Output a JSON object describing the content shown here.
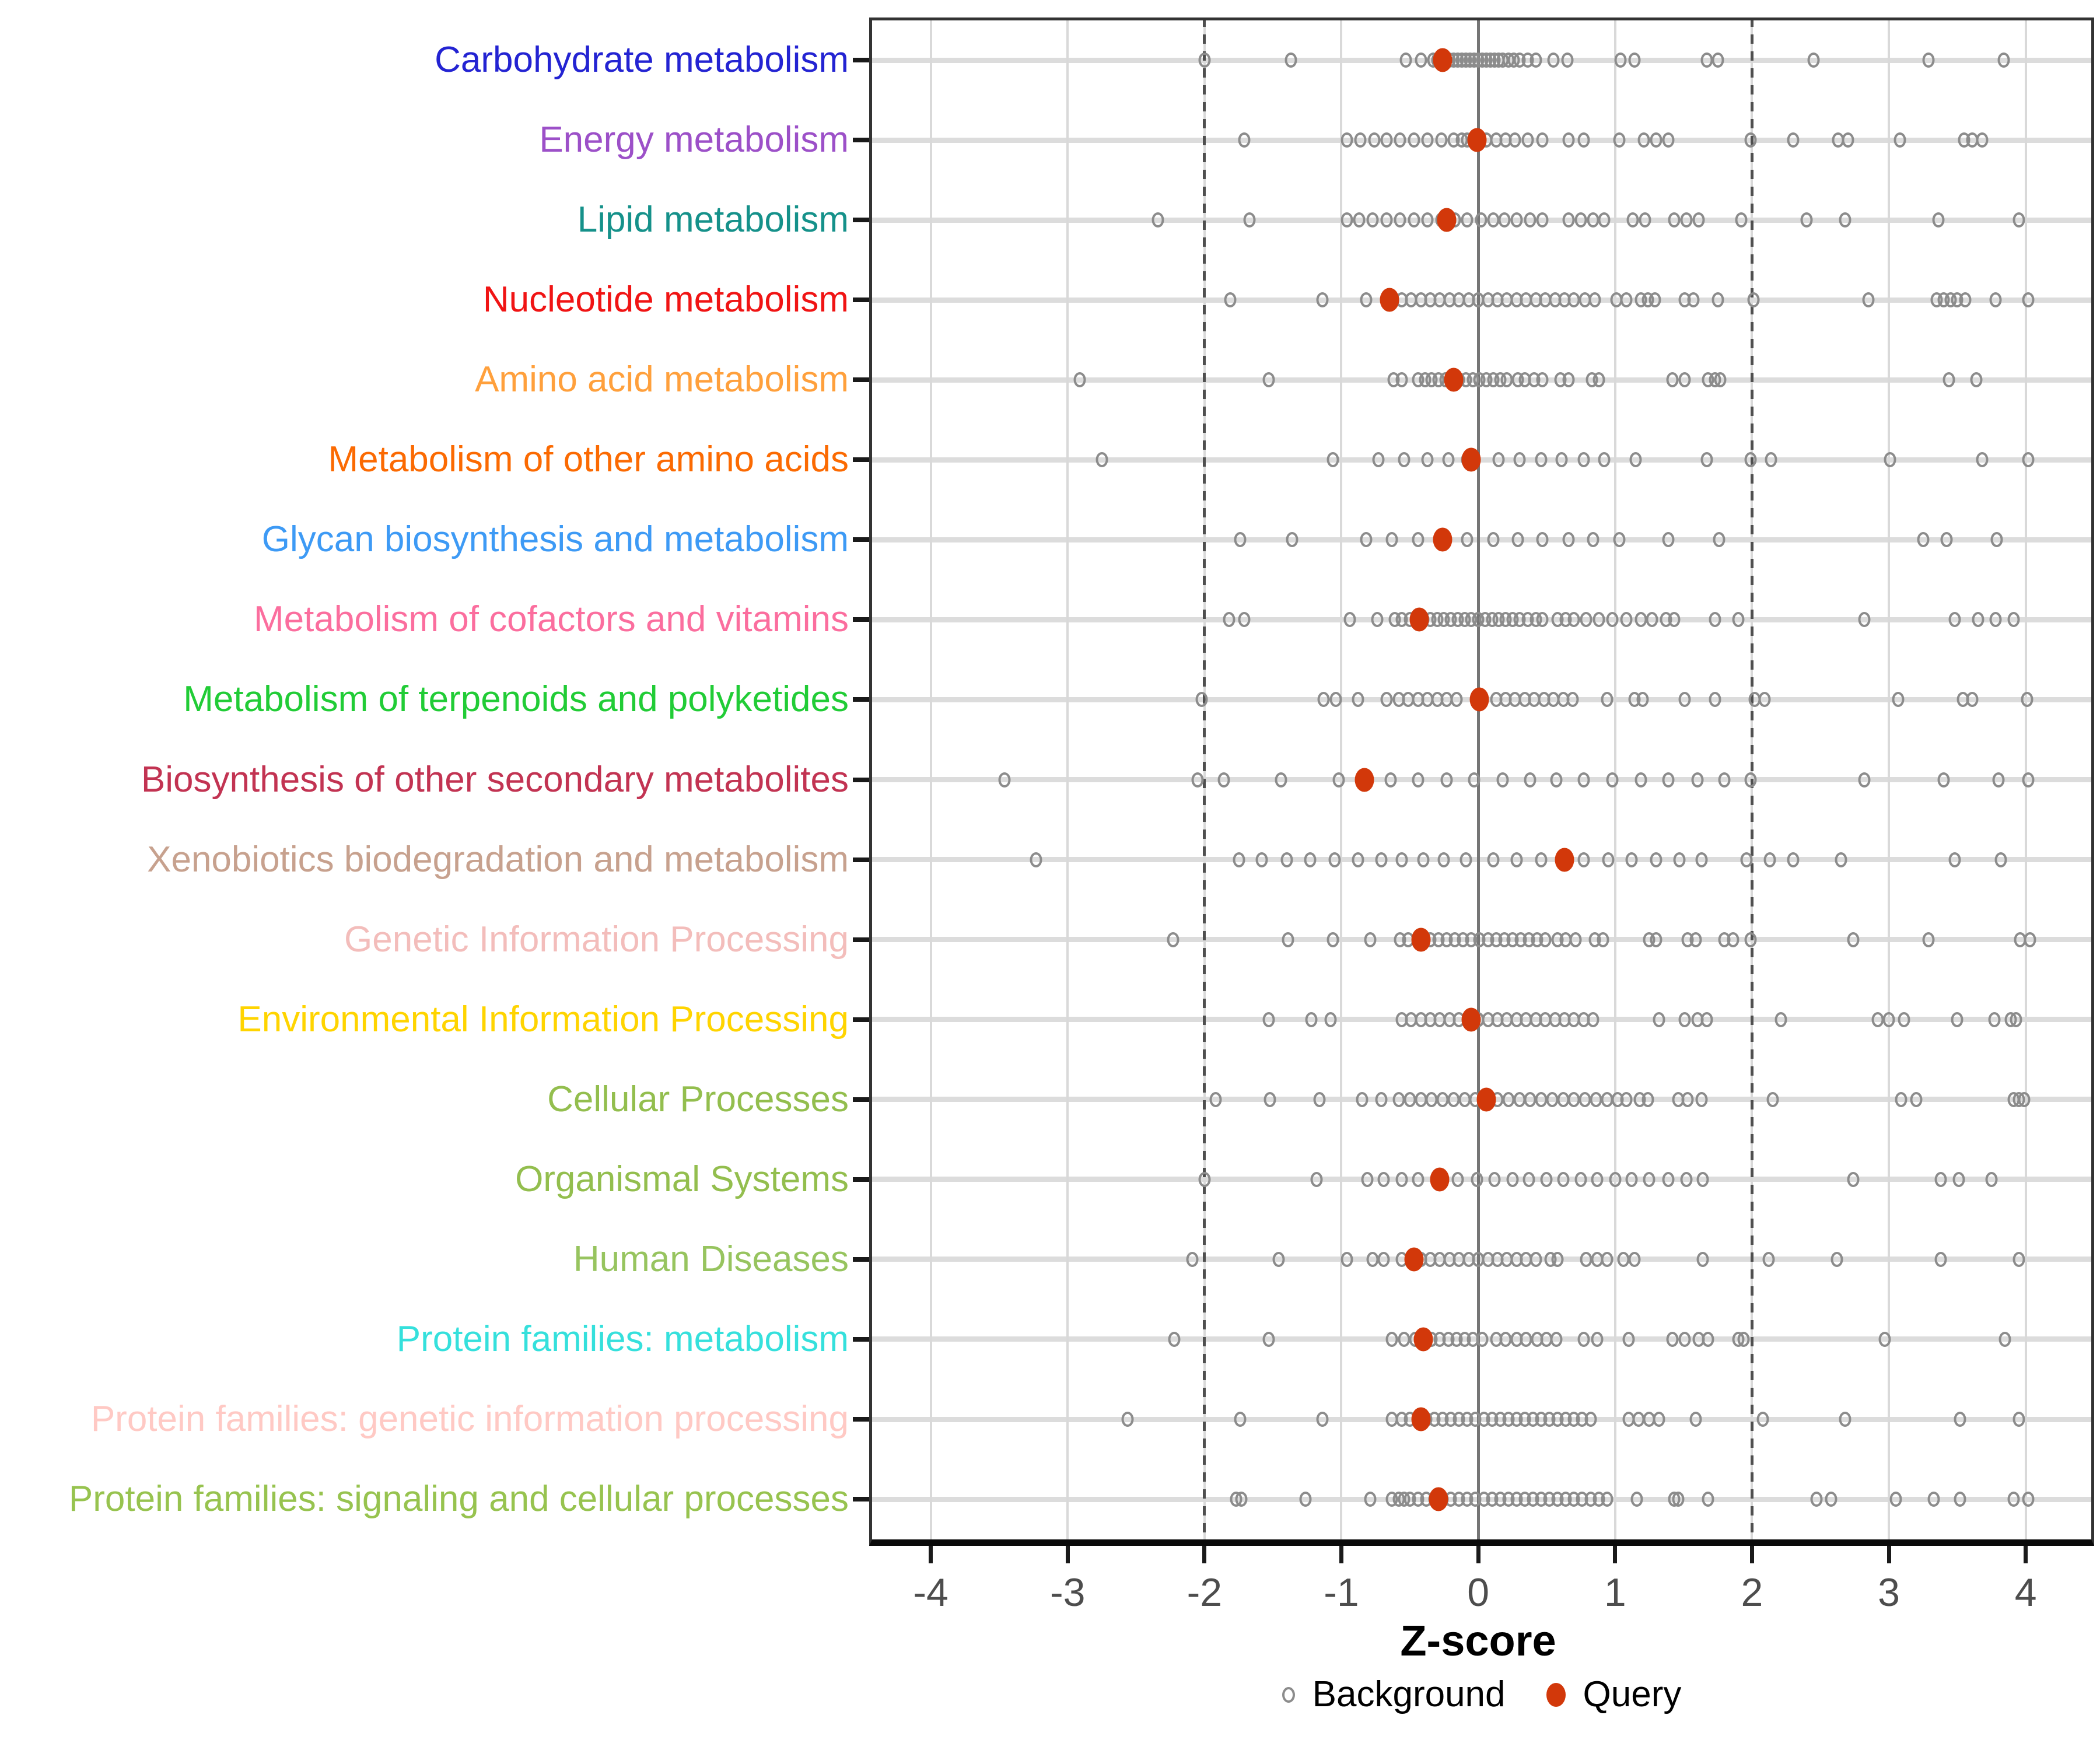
{
  "chart_data": {
    "type": "scatter",
    "title": "",
    "xlabel": "Z-score",
    "xlim": [
      -4.45,
      4.5
    ],
    "x_ticks": [
      -4,
      -3,
      -2,
      -1,
      0,
      1,
      2,
      3,
      4
    ],
    "grid": "major-vertical-and-row-lines",
    "reference_lines": {
      "zero_solid": 0,
      "dashed_thresholds": [
        -2,
        2
      ]
    },
    "legend_position": "bottom-center",
    "legend": [
      {
        "label": "Background",
        "marker": "open-circle",
        "color": "#8C8C8C"
      },
      {
        "label": "Query",
        "marker": "filled-circle",
        "color": "#D2380A"
      }
    ],
    "series_note": "Each category row: gray open circles = Background z-scores, red filled circle = Query z-score",
    "categories": [
      {
        "label": "Carbohydrate metabolism",
        "color": "#2323D2",
        "query": -0.26,
        "background": [
          -2.0,
          -1.37,
          -0.53,
          -0.42,
          -0.33,
          -0.3,
          -0.27,
          -0.24,
          -0.21,
          -0.18,
          -0.15,
          -0.12,
          -0.09,
          -0.06,
          -0.03,
          0.0,
          0.03,
          0.06,
          0.09,
          0.12,
          0.15,
          0.18,
          0.22,
          0.26,
          0.3,
          0.36,
          0.42,
          0.55,
          0.65,
          1.04,
          1.14,
          1.67,
          1.75,
          2.45,
          3.29,
          3.84
        ]
      },
      {
        "label": "Energy metabolism",
        "color": "#9C50C8",
        "query": -0.01,
        "background": [
          -1.71,
          -0.96,
          -0.86,
          -0.76,
          -0.67,
          -0.57,
          -0.47,
          -0.37,
          -0.27,
          -0.18,
          -0.12,
          -0.08,
          -0.04,
          0.0,
          0.06,
          0.13,
          0.2,
          0.27,
          0.36,
          0.47,
          0.66,
          0.77,
          1.03,
          1.21,
          1.3,
          1.39,
          1.99,
          2.3,
          2.63,
          2.7,
          3.08,
          3.55,
          3.61,
          3.68
        ]
      },
      {
        "label": "Lipid metabolism",
        "color": "#15918A",
        "query": -0.23,
        "background": [
          -2.34,
          -1.67,
          -0.96,
          -0.87,
          -0.77,
          -0.67,
          -0.57,
          -0.47,
          -0.37,
          -0.27,
          -0.17,
          -0.08,
          0.02,
          0.11,
          0.19,
          0.28,
          0.38,
          0.47,
          0.66,
          0.75,
          0.84,
          0.92,
          1.13,
          1.22,
          1.43,
          1.52,
          1.61,
          1.92,
          2.4,
          2.68,
          3.36,
          3.95
        ]
      },
      {
        "label": "Nucleotide metabolism",
        "color": "#F01414",
        "query": -0.65,
        "background": [
          -1.81,
          -1.14,
          -0.82,
          -0.56,
          -0.49,
          -0.42,
          -0.35,
          -0.28,
          -0.21,
          -0.14,
          -0.07,
          0.0,
          0.07,
          0.14,
          0.21,
          0.28,
          0.35,
          0.42,
          0.49,
          0.56,
          0.63,
          0.7,
          0.78,
          0.85,
          1.01,
          1.08,
          1.19,
          1.24,
          1.29,
          1.51,
          1.57,
          1.75,
          2.01,
          2.85,
          3.35,
          3.4,
          3.45,
          3.5,
          3.56,
          3.78,
          4.02
        ]
      },
      {
        "label": "Amino acid metabolism",
        "color": "#FFA03C",
        "query": -0.18,
        "background": [
          -2.91,
          -1.53,
          -0.62,
          -0.56,
          -0.44,
          -0.39,
          -0.34,
          -0.29,
          -0.24,
          -0.19,
          -0.14,
          -0.09,
          -0.04,
          0.01,
          0.06,
          0.11,
          0.16,
          0.21,
          0.29,
          0.34,
          0.41,
          0.47,
          0.6,
          0.66,
          0.83,
          0.88,
          1.42,
          1.51,
          1.68,
          1.73,
          1.77,
          3.44,
          3.64
        ]
      },
      {
        "label": "Metabolism of other amino acids",
        "color": "#FB6A02",
        "query": -0.05,
        "background": [
          -2.75,
          -1.06,
          -0.73,
          -0.54,
          -0.37,
          -0.22,
          -0.08,
          0.15,
          0.3,
          0.46,
          0.61,
          0.77,
          0.92,
          1.15,
          1.67,
          1.99,
          2.14,
          3.01,
          3.68,
          4.02
        ]
      },
      {
        "label": "Glycan biosynthesis and metabolism",
        "color": "#3D9AF5",
        "query": -0.26,
        "background": [
          -1.74,
          -1.36,
          -0.82,
          -0.63,
          -0.44,
          -0.08,
          0.11,
          0.29,
          0.47,
          0.66,
          0.84,
          1.03,
          1.39,
          1.76,
          3.25,
          3.42,
          3.79
        ]
      },
      {
        "label": "Metabolism of cofactors and vitamins",
        "color": "#FB6E9E",
        "query": -0.43,
        "background": [
          -1.82,
          -1.71,
          -0.94,
          -0.74,
          -0.61,
          -0.56,
          -0.5,
          -0.45,
          -0.4,
          -0.35,
          -0.3,
          -0.25,
          -0.2,
          -0.15,
          -0.1,
          -0.05,
          0.0,
          0.05,
          0.1,
          0.15,
          0.2,
          0.25,
          0.3,
          0.36,
          0.42,
          0.47,
          0.58,
          0.64,
          0.7,
          0.79,
          0.88,
          0.98,
          1.08,
          1.19,
          1.27,
          1.37,
          1.43,
          1.73,
          1.9,
          2.82,
          3.48,
          3.65,
          3.78,
          3.91
        ]
      },
      {
        "label": "Metabolism of terpenoids and polyketides",
        "color": "#21CC36",
        "query": 0.01,
        "background": [
          -2.02,
          -1.13,
          -1.04,
          -0.88,
          -0.67,
          -0.58,
          -0.51,
          -0.44,
          -0.37,
          -0.3,
          -0.23,
          -0.16,
          0.13,
          0.2,
          0.27,
          0.34,
          0.41,
          0.48,
          0.55,
          0.62,
          0.69,
          0.94,
          1.14,
          1.2,
          1.51,
          1.73,
          2.02,
          2.09,
          3.07,
          3.54,
          3.61,
          4.01
        ]
      },
      {
        "label": "Biosynthesis of other secondary metabolites",
        "color": "#C23352",
        "query": -0.83,
        "background": [
          -3.46,
          -2.05,
          -1.86,
          -1.44,
          -1.02,
          -0.64,
          -0.44,
          -0.23,
          -0.03,
          0.18,
          0.38,
          0.57,
          0.77,
          0.98,
          1.19,
          1.39,
          1.6,
          1.8,
          1.99,
          2.82,
          3.4,
          3.8,
          4.02
        ]
      },
      {
        "label": "Xenobiotics biodegradation and metabolism",
        "color": "#C7A18E",
        "query": 0.63,
        "background": [
          -3.23,
          -1.75,
          -1.58,
          -1.4,
          -1.23,
          -1.05,
          -0.88,
          -0.71,
          -0.56,
          -0.4,
          -0.25,
          -0.09,
          0.11,
          0.28,
          0.46,
          0.77,
          0.95,
          1.12,
          1.3,
          1.47,
          1.63,
          1.96,
          2.13,
          2.3,
          2.65,
          3.48,
          3.82
        ]
      },
      {
        "label": "Genetic Information Processing",
        "color": "#F3BDBB",
        "query": -0.42,
        "background": [
          -2.23,
          -1.39,
          -1.06,
          -0.79,
          -0.57,
          -0.51,
          -0.35,
          -0.29,
          -0.23,
          -0.17,
          -0.11,
          -0.05,
          0.01,
          0.07,
          0.13,
          0.19,
          0.25,
          0.31,
          0.37,
          0.43,
          0.49,
          0.58,
          0.64,
          0.71,
          0.85,
          0.91,
          1.25,
          1.3,
          1.53,
          1.59,
          1.8,
          1.86,
          1.99,
          2.74,
          3.29,
          3.96,
          4.03
        ]
      },
      {
        "label": "Environmental Information Processing",
        "color": "#FFD400",
        "query": -0.05,
        "background": [
          -1.53,
          -1.22,
          -1.08,
          -0.56,
          -0.49,
          -0.42,
          -0.35,
          -0.28,
          -0.21,
          -0.14,
          -0.07,
          0.0,
          0.07,
          0.14,
          0.21,
          0.28,
          0.35,
          0.42,
          0.49,
          0.56,
          0.63,
          0.7,
          0.77,
          0.84,
          1.32,
          1.51,
          1.6,
          1.67,
          2.21,
          2.92,
          3.0,
          3.11,
          3.5,
          3.77,
          3.89,
          3.93
        ]
      },
      {
        "label": "Cellular Processes",
        "color": "#93BE4E",
        "query": 0.06,
        "background": [
          -1.92,
          -1.52,
          -1.16,
          -0.85,
          -0.71,
          -0.58,
          -0.5,
          -0.42,
          -0.34,
          -0.26,
          -0.18,
          -0.1,
          -0.02,
          0.06,
          0.14,
          0.22,
          0.3,
          0.38,
          0.46,
          0.54,
          0.62,
          0.7,
          0.78,
          0.86,
          0.94,
          1.02,
          1.08,
          1.18,
          1.24,
          1.46,
          1.53,
          1.63,
          2.15,
          3.09,
          3.2,
          3.91,
          3.95,
          3.99
        ]
      },
      {
        "label": "Organismal Systems",
        "color": "#93BE4E",
        "query": -0.28,
        "background": [
          -2.0,
          -1.18,
          -0.81,
          -0.69,
          -0.56,
          -0.44,
          -0.15,
          -0.01,
          0.12,
          0.25,
          0.37,
          0.5,
          0.62,
          0.75,
          0.87,
          1.0,
          1.12,
          1.25,
          1.39,
          1.52,
          1.64,
          2.74,
          3.38,
          3.51,
          3.75
        ]
      },
      {
        "label": "Human Diseases",
        "color": "#97C45F",
        "query": -0.47,
        "background": [
          -2.09,
          -1.46,
          -0.96,
          -0.77,
          -0.69,
          -0.56,
          -0.49,
          -0.42,
          -0.35,
          -0.28,
          -0.21,
          -0.14,
          -0.07,
          0.0,
          0.07,
          0.14,
          0.21,
          0.28,
          0.35,
          0.42,
          0.53,
          0.58,
          0.79,
          0.87,
          0.94,
          1.06,
          1.14,
          1.64,
          2.12,
          2.62,
          3.38,
          3.95
        ]
      },
      {
        "label": "Protein families: metabolism",
        "color": "#35E0DC",
        "query": -0.4,
        "background": [
          -2.22,
          -1.53,
          -0.63,
          -0.54,
          -0.46,
          -0.4,
          -0.34,
          -0.28,
          -0.22,
          -0.16,
          -0.1,
          -0.04,
          0.03,
          0.13,
          0.2,
          0.28,
          0.35,
          0.43,
          0.5,
          0.57,
          0.77,
          0.87,
          1.1,
          1.42,
          1.51,
          1.61,
          1.68,
          1.9,
          1.94,
          2.97,
          3.85
        ]
      },
      {
        "label": "Protein families: genetic information processing",
        "color": "#FFC9C4",
        "query": -0.42,
        "background": [
          -2.56,
          -1.74,
          -1.14,
          -0.63,
          -0.56,
          -0.5,
          -0.44,
          -0.38,
          -0.32,
          -0.26,
          -0.2,
          -0.14,
          -0.08,
          -0.02,
          0.04,
          0.1,
          0.16,
          0.22,
          0.28,
          0.34,
          0.4,
          0.46,
          0.52,
          0.58,
          0.64,
          0.7,
          0.76,
          0.82,
          1.1,
          1.17,
          1.25,
          1.32,
          1.59,
          2.08,
          2.68,
          3.52,
          3.95
        ]
      },
      {
        "label": "Protein families: signaling and cellular processes",
        "color": "#97C34F",
        "query": -0.29,
        "background": [
          -1.77,
          -1.73,
          -1.26,
          -0.79,
          -0.63,
          -0.58,
          -0.54,
          -0.5,
          -0.44,
          -0.38,
          -0.32,
          -0.26,
          -0.2,
          -0.14,
          -0.08,
          -0.02,
          0.04,
          0.1,
          0.16,
          0.22,
          0.28,
          0.34,
          0.4,
          0.46,
          0.52,
          0.58,
          0.64,
          0.7,
          0.76,
          0.82,
          0.88,
          0.94,
          1.16,
          1.43,
          1.46,
          1.68,
          2.47,
          2.58,
          3.05,
          3.33,
          3.52,
          3.91,
          4.02
        ]
      }
    ]
  },
  "style": {
    "query_color": "#D2380A",
    "background_stroke": "#8C8C8C",
    "grid_light": "#D9D9D9",
    "row_line": "#DCDCDC",
    "zero_line": "#757575",
    "threshold_line": "#4F4F4F",
    "panel_border": "#333333",
    "axis_line": "#0a0a0a",
    "tick_label_color": "#4D4D4D"
  }
}
